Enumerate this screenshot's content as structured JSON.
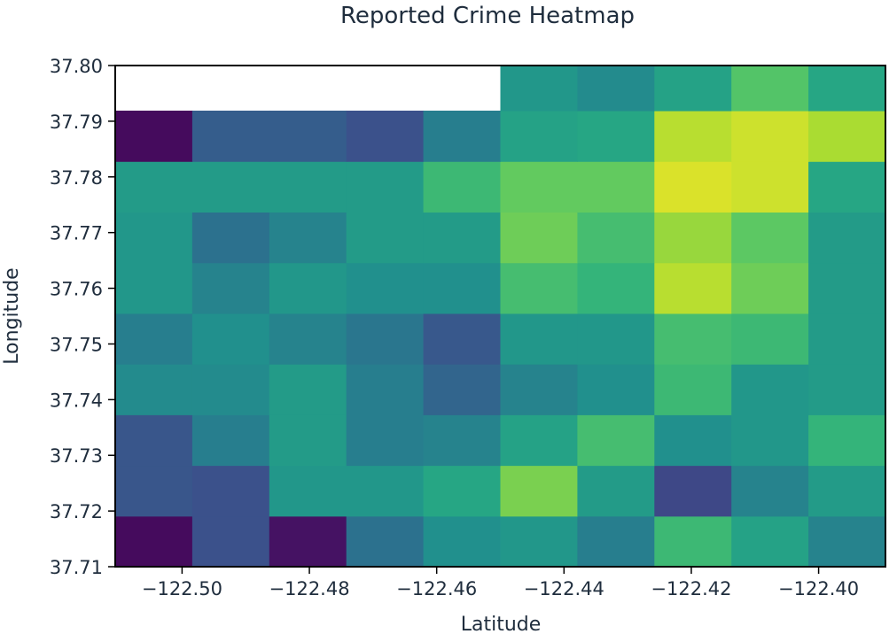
{
  "chart_data": {
    "type": "heatmap",
    "title": "Reported Crime Heatmap",
    "xlabel": "Latitude",
    "ylabel": "Longitude",
    "xlim": [
      -122.5105,
      -122.3895
    ],
    "ylim": [
      37.71,
      37.8
    ],
    "x_ticks": [
      -122.5,
      -122.48,
      -122.46,
      -122.44,
      -122.42,
      -122.4
    ],
    "x_tick_labels": [
      "−122.50",
      "−122.48",
      "−122.46",
      "−122.44",
      "−122.42",
      "−122.40"
    ],
    "y_ticks": [
      37.71,
      37.72,
      37.73,
      37.74,
      37.75,
      37.76,
      37.77,
      37.78,
      37.79,
      37.8
    ],
    "y_tick_labels": [
      "37.71",
      "37.72",
      "37.73",
      "37.74",
      "37.75",
      "37.76",
      "37.77",
      "37.78",
      "37.79",
      "37.80"
    ],
    "x_edges": [
      -122.5105,
      -122.4984,
      -122.4863,
      -122.4742,
      -122.4621,
      -122.45,
      -122.4379,
      -122.4258,
      -122.4137,
      -122.4016,
      -122.3895
    ],
    "y_edges": [
      37.71,
      37.7191,
      37.7282,
      37.7373,
      37.7464,
      37.7555,
      37.7646,
      37.7737,
      37.7828,
      37.7919,
      37.8
    ],
    "colormap": "viridis",
    "vmin": 0,
    "vmax": 1,
    "values": [
      [
        0.03,
        0.25,
        0.05,
        0.38,
        0.5,
        0.53,
        0.43,
        0.68,
        0.58,
        0.45
      ],
      [
        0.27,
        0.25,
        0.53,
        0.53,
        0.6,
        0.8,
        0.55,
        0.22,
        0.45,
        0.55
      ],
      [
        0.27,
        0.43,
        0.55,
        0.43,
        0.45,
        0.58,
        0.7,
        0.5,
        0.53,
        0.66
      ],
      [
        0.48,
        0.48,
        0.55,
        0.43,
        0.33,
        0.45,
        0.5,
        0.68,
        0.53,
        0.55
      ],
      [
        0.43,
        0.5,
        0.45,
        0.4,
        0.28,
        0.53,
        0.53,
        0.7,
        0.68,
        0.55
      ],
      [
        0.53,
        0.45,
        0.53,
        0.5,
        0.5,
        0.7,
        0.66,
        0.9,
        0.78,
        0.55
      ],
      [
        0.53,
        0.38,
        0.45,
        0.55,
        0.55,
        0.78,
        0.7,
        0.85,
        0.75,
        0.55
      ],
      [
        0.55,
        0.55,
        0.55,
        0.55,
        0.68,
        0.76,
        0.76,
        0.95,
        0.93,
        0.6
      ],
      [
        0.03,
        0.3,
        0.3,
        0.25,
        0.43,
        0.58,
        0.6,
        0.9,
        0.93,
        0.88
      ],
      [
        null,
        null,
        null,
        null,
        null,
        0.53,
        0.48,
        0.58,
        0.73,
        0.6
      ]
    ],
    "grid": false,
    "legend": "none"
  }
}
